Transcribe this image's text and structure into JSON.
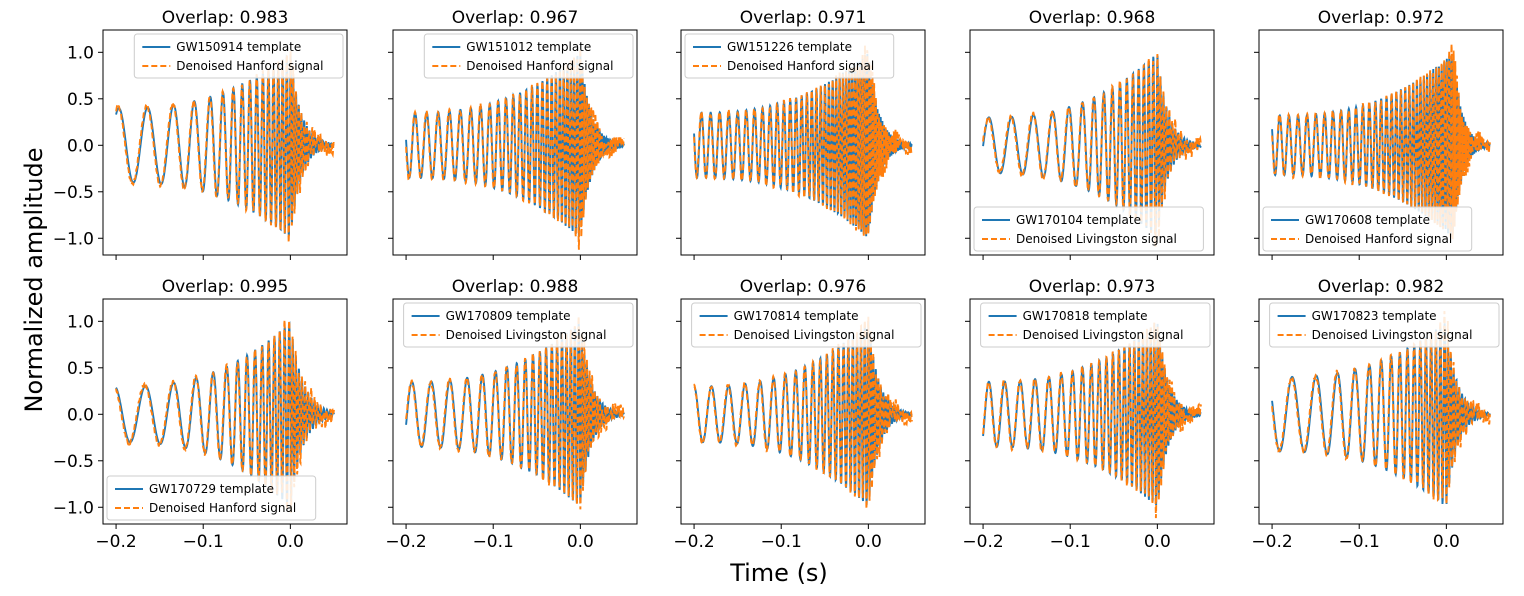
{
  "figure": {
    "ylabel": "Normalized amplitude",
    "xlabel": "Time (s)"
  },
  "colors": {
    "template": "#1f77b4",
    "signal": "#ff7f0e",
    "axis": "#000000"
  },
  "chart_data": [
    {
      "type": "line",
      "title": "Overlap: 0.983",
      "xlim": [
        -0.215,
        0.065
      ],
      "ylim": [
        -1.18,
        1.24
      ],
      "xticks": [
        -0.2,
        -0.1,
        0.0
      ],
      "xtick_labels": [
        "−0.2",
        "−0.1",
        "0.0"
      ],
      "yticks": [
        -1.0,
        -0.5,
        0.0,
        0.5,
        1.0
      ],
      "ytick_labels": [
        "−1.0",
        "−0.5",
        "0.0",
        "0.5",
        "1.0"
      ],
      "legend_loc": "upper right",
      "series": [
        {
          "name": "GW150914 template",
          "style": "solid"
        },
        {
          "name": "Denoised Hanford signal",
          "style": "dashed"
        }
      ],
      "wave": {
        "f0": 30,
        "f1": 230,
        "a0": 0.4,
        "a1": 1.0,
        "tm": 0.0,
        "phase": -0.6,
        "ring": 0.012
      }
    },
    {
      "type": "line",
      "title": "Overlap: 0.967",
      "xlim": [
        -0.215,
        0.065
      ],
      "ylim": [
        -1.18,
        1.24
      ],
      "xticks": [
        -0.2,
        -0.1,
        0.0
      ],
      "xtick_labels": [
        "−0.2",
        "−0.1",
        "0.0"
      ],
      "yticks": [
        -1.0,
        -0.5,
        0.0,
        0.5,
        1.0
      ],
      "ytick_labels": [
        "−1.0",
        "−0.5",
        "0.0",
        "0.5",
        "1.0"
      ],
      "legend_loc": "upper right",
      "series": [
        {
          "name": "GW151012 template",
          "style": "solid"
        },
        {
          "name": "Denoised Hanford signal",
          "style": "dashed"
        }
      ],
      "wave": {
        "f0": 75,
        "f1": 290,
        "a0": 0.35,
        "a1": 1.0,
        "tm": 0.0,
        "phase": 1.4,
        "ring": 0.012
      }
    },
    {
      "type": "line",
      "title": "Overlap: 0.971",
      "xlim": [
        -0.215,
        0.065
      ],
      "ylim": [
        -1.18,
        1.24
      ],
      "xticks": [
        -0.2,
        -0.1,
        0.0
      ],
      "xtick_labels": [
        "−0.2",
        "−0.1",
        "0.0"
      ],
      "yticks": [
        -1.0,
        -0.5,
        0.0,
        0.5,
        1.0
      ],
      "ytick_labels": [
        "−1.0",
        "−0.5",
        "0.0",
        "0.5",
        "1.0"
      ],
      "legend_loc": "upper left",
      "series": [
        {
          "name": "GW151226 template",
          "style": "solid"
        },
        {
          "name": "Denoised Hanford signal",
          "style": "dashed"
        }
      ],
      "wave": {
        "f0": 95,
        "f1": 380,
        "a0": 0.35,
        "a1": 1.0,
        "tm": 0.0,
        "phase": 1.2,
        "ring": 0.012
      }
    },
    {
      "type": "line",
      "title": "Overlap: 0.968",
      "xlim": [
        -0.215,
        0.065
      ],
      "ylim": [
        -1.18,
        1.24
      ],
      "xticks": [
        -0.2,
        -0.1,
        0.0
      ],
      "xtick_labels": [
        "−0.2",
        "−0.1",
        "0.0"
      ],
      "yticks": [
        -1.0,
        -0.5,
        0.0,
        0.5,
        1.0
      ],
      "ytick_labels": [
        "−1.0",
        "−0.5",
        "0.0",
        "0.5",
        "1.0"
      ],
      "legend_loc": "lower left",
      "series": [
        {
          "name": "GW170104 template",
          "style": "solid"
        },
        {
          "name": "Denoised Livingston signal",
          "style": "dashed"
        }
      ],
      "wave": {
        "f0": 38,
        "f1": 210,
        "a0": 0.3,
        "a1": 1.0,
        "tm": 0.0,
        "phase": -1.6,
        "ring": 0.012
      }
    },
    {
      "type": "line",
      "title": "Overlap: 0.972",
      "xlim": [
        -0.215,
        0.065
      ],
      "ylim": [
        -1.18,
        1.24
      ],
      "xticks": [
        -0.2,
        -0.1,
        0.0
      ],
      "xtick_labels": [
        "−0.2",
        "−0.1",
        "0.0"
      ],
      "yticks": [
        -1.0,
        -0.5,
        0.0,
        0.5,
        1.0
      ],
      "ytick_labels": [
        "−1.0",
        "−0.5",
        "0.0",
        "0.5",
        "1.0"
      ],
      "legend_loc": "lower left",
      "series": [
        {
          "name": "GW170608 template",
          "style": "solid"
        },
        {
          "name": "Denoised Hanford signal",
          "style": "dashed"
        }
      ],
      "wave": {
        "f0": 95,
        "f1": 380,
        "a0": 0.32,
        "a1": 1.0,
        "tm": 0.008,
        "phase": 1.0,
        "ring": 0.01
      }
    },
    {
      "type": "line",
      "title": "Overlap: 0.995",
      "xlim": [
        -0.215,
        0.065
      ],
      "ylim": [
        -1.18,
        1.24
      ],
      "xticks": [
        -0.2,
        -0.1,
        0.0
      ],
      "xtick_labels": [
        "−0.2",
        "−0.1",
        "0.0"
      ],
      "yticks": [
        -1.0,
        -0.5,
        0.0,
        0.5,
        1.0
      ],
      "ytick_labels": [
        "−1.0",
        "−0.5",
        "0.0",
        "0.5",
        "1.0"
      ],
      "legend_loc": "lower left",
      "series": [
        {
          "name": "GW170729 template",
          "style": "solid"
        },
        {
          "name": "Denoised Hanford signal",
          "style": "dashed"
        }
      ],
      "wave": {
        "f0": 28,
        "f1": 200,
        "a0": 0.3,
        "a1": 1.0,
        "tm": 0.0,
        "phase": 0.3,
        "ring": 0.014
      }
    },
    {
      "type": "line",
      "title": "Overlap: 0.988",
      "xlim": [
        -0.215,
        0.065
      ],
      "ylim": [
        -1.18,
        1.24
      ],
      "xticks": [
        -0.2,
        -0.1,
        0.0
      ],
      "xtick_labels": [
        "−0.2",
        "−0.1",
        "0.0"
      ],
      "yticks": [
        -1.0,
        -0.5,
        0.0,
        0.5,
        1.0
      ],
      "ytick_labels": [
        "−1.0",
        "−0.5",
        "0.0",
        "0.5",
        "1.0"
      ],
      "legend_loc": "upper right",
      "series": [
        {
          "name": "GW170809 template",
          "style": "solid"
        },
        {
          "name": "Denoised Livingston signal",
          "style": "dashed"
        }
      ],
      "wave": {
        "f0": 45,
        "f1": 240,
        "a0": 0.35,
        "a1": 1.0,
        "tm": 0.0,
        "phase": -1.9,
        "ring": 0.012
      }
    },
    {
      "type": "line",
      "title": "Overlap: 0.976",
      "xlim": [
        -0.215,
        0.065
      ],
      "ylim": [
        -1.18,
        1.24
      ],
      "xticks": [
        -0.2,
        -0.1,
        0.0
      ],
      "xtick_labels": [
        "−0.2",
        "−0.1",
        "0.0"
      ],
      "yticks": [
        -1.0,
        -0.5,
        0.0,
        0.5,
        1.0
      ],
      "ytick_labels": [
        "−1.0",
        "−0.5",
        "0.0",
        "0.5",
        "1.0"
      ],
      "legend_loc": "upper right",
      "series": [
        {
          "name": "GW170814 template",
          "style": "solid"
        },
        {
          "name": "Denoised Livingston signal",
          "style": "dashed"
        }
      ],
      "wave": {
        "f0": 50,
        "f1": 250,
        "a0": 0.3,
        "a1": 1.0,
        "tm": 0.0,
        "phase": 0.0,
        "ring": 0.012
      }
    },
    {
      "type": "line",
      "title": "Overlap: 0.973",
      "xlim": [
        -0.215,
        0.065
      ],
      "ylim": [
        -1.18,
        1.24
      ],
      "xticks": [
        -0.2,
        -0.1,
        0.0
      ],
      "xtick_labels": [
        "−0.2",
        "−0.1",
        "0.0"
      ],
      "yticks": [
        -1.0,
        -0.5,
        0.0,
        0.5,
        1.0
      ],
      "ytick_labels": [
        "−1.0",
        "−0.5",
        "0.0",
        "0.5",
        "1.0"
      ],
      "legend_loc": "upper right",
      "series": [
        {
          "name": "GW170818 template",
          "style": "solid"
        },
        {
          "name": "Denoised Livingston signal",
          "style": "dashed"
        }
      ],
      "wave": {
        "f0": 55,
        "f1": 260,
        "a0": 0.35,
        "a1": 1.0,
        "tm": 0.0,
        "phase": -2.3,
        "ring": 0.012
      }
    },
    {
      "type": "line",
      "title": "Overlap: 0.982",
      "xlim": [
        -0.215,
        0.065
      ],
      "ylim": [
        -1.18,
        1.24
      ],
      "xticks": [
        -0.2,
        -0.1,
        0.0
      ],
      "xtick_labels": [
        "−0.2",
        "−0.1",
        "0.0"
      ],
      "yticks": [
        -1.0,
        -0.5,
        0.0,
        0.5,
        1.0
      ],
      "ytick_labels": [
        "−1.0",
        "−0.5",
        "0.0",
        "0.5",
        "1.0"
      ],
      "legend_loc": "upper right",
      "series": [
        {
          "name": "GW170823 template",
          "style": "solid"
        },
        {
          "name": "Denoised Livingston signal",
          "style": "dashed"
        }
      ],
      "wave": {
        "f0": 35,
        "f1": 220,
        "a0": 0.4,
        "a1": 1.0,
        "tm": 0.0,
        "phase": 1.2,
        "ring": 0.012
      }
    }
  ]
}
